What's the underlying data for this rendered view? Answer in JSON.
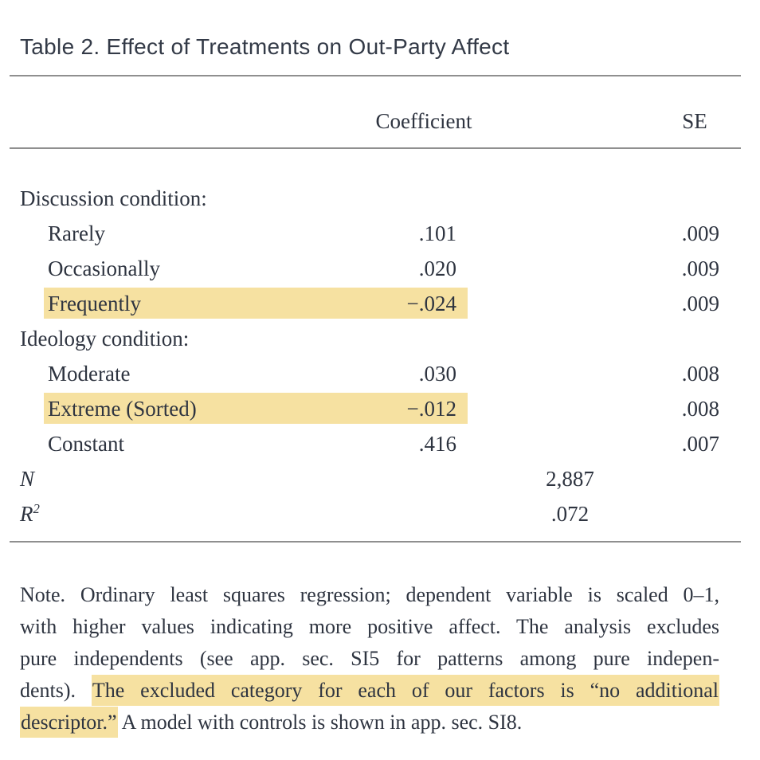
{
  "title": "Table 2. Effect of Treatments on Out-Party Affect",
  "colors": {
    "text": "#2e3440",
    "highlight": "#f6e1a1",
    "rule": "#8f8f8f"
  },
  "table": {
    "headers": {
      "coefficient": "Coefficient",
      "se": "SE"
    },
    "rows": [
      {
        "type": "group",
        "label": "Discussion condition:"
      },
      {
        "type": "item",
        "label": "Rarely",
        "coefficient": ".101",
        "se": ".009",
        "highlighted": false
      },
      {
        "type": "item",
        "label": "Occasionally",
        "coefficient": ".020",
        "se": ".009",
        "highlighted": false
      },
      {
        "type": "item",
        "label": "Frequently",
        "coefficient": "−.024",
        "se": ".009",
        "highlighted": true
      },
      {
        "type": "group",
        "label": "Ideology condition:"
      },
      {
        "type": "item",
        "label": "Moderate",
        "coefficient": ".030",
        "se": ".008",
        "highlighted": false
      },
      {
        "type": "item",
        "label": "Extreme (Sorted)",
        "coefficient": "−.012",
        "se": ".008",
        "highlighted": true
      },
      {
        "type": "item",
        "label": "Constant",
        "coefficient": ".416",
        "se": ".007",
        "highlighted": false
      },
      {
        "type": "stat",
        "label": "N",
        "value": "2,887"
      },
      {
        "type": "stat",
        "label": "R",
        "label_sup": "2",
        "value": ".072"
      }
    ]
  },
  "note": {
    "lines": [
      {
        "last": false,
        "segments": [
          {
            "text": "Note. Ordinary least squares regression; dependent variable is scaled 0–1,",
            "highlighted": false
          }
        ]
      },
      {
        "last": false,
        "segments": [
          {
            "text": "with higher values indicating more positive affect. The analysis excludes",
            "highlighted": false
          }
        ]
      },
      {
        "last": false,
        "segments": [
          {
            "text": "pure independents (see app. sec. SI5 for patterns among pure indepen-",
            "highlighted": false
          }
        ]
      },
      {
        "last": false,
        "segments": [
          {
            "text": "dents). ",
            "highlighted": false
          },
          {
            "text": "The excluded category for each of our factors is “no additional",
            "highlighted": true
          }
        ]
      },
      {
        "last": true,
        "segments": [
          {
            "text": "descriptor.”",
            "highlighted": true
          },
          {
            "text": " A model with controls is shown in app. sec. SI8.",
            "highlighted": false
          }
        ]
      }
    ]
  }
}
